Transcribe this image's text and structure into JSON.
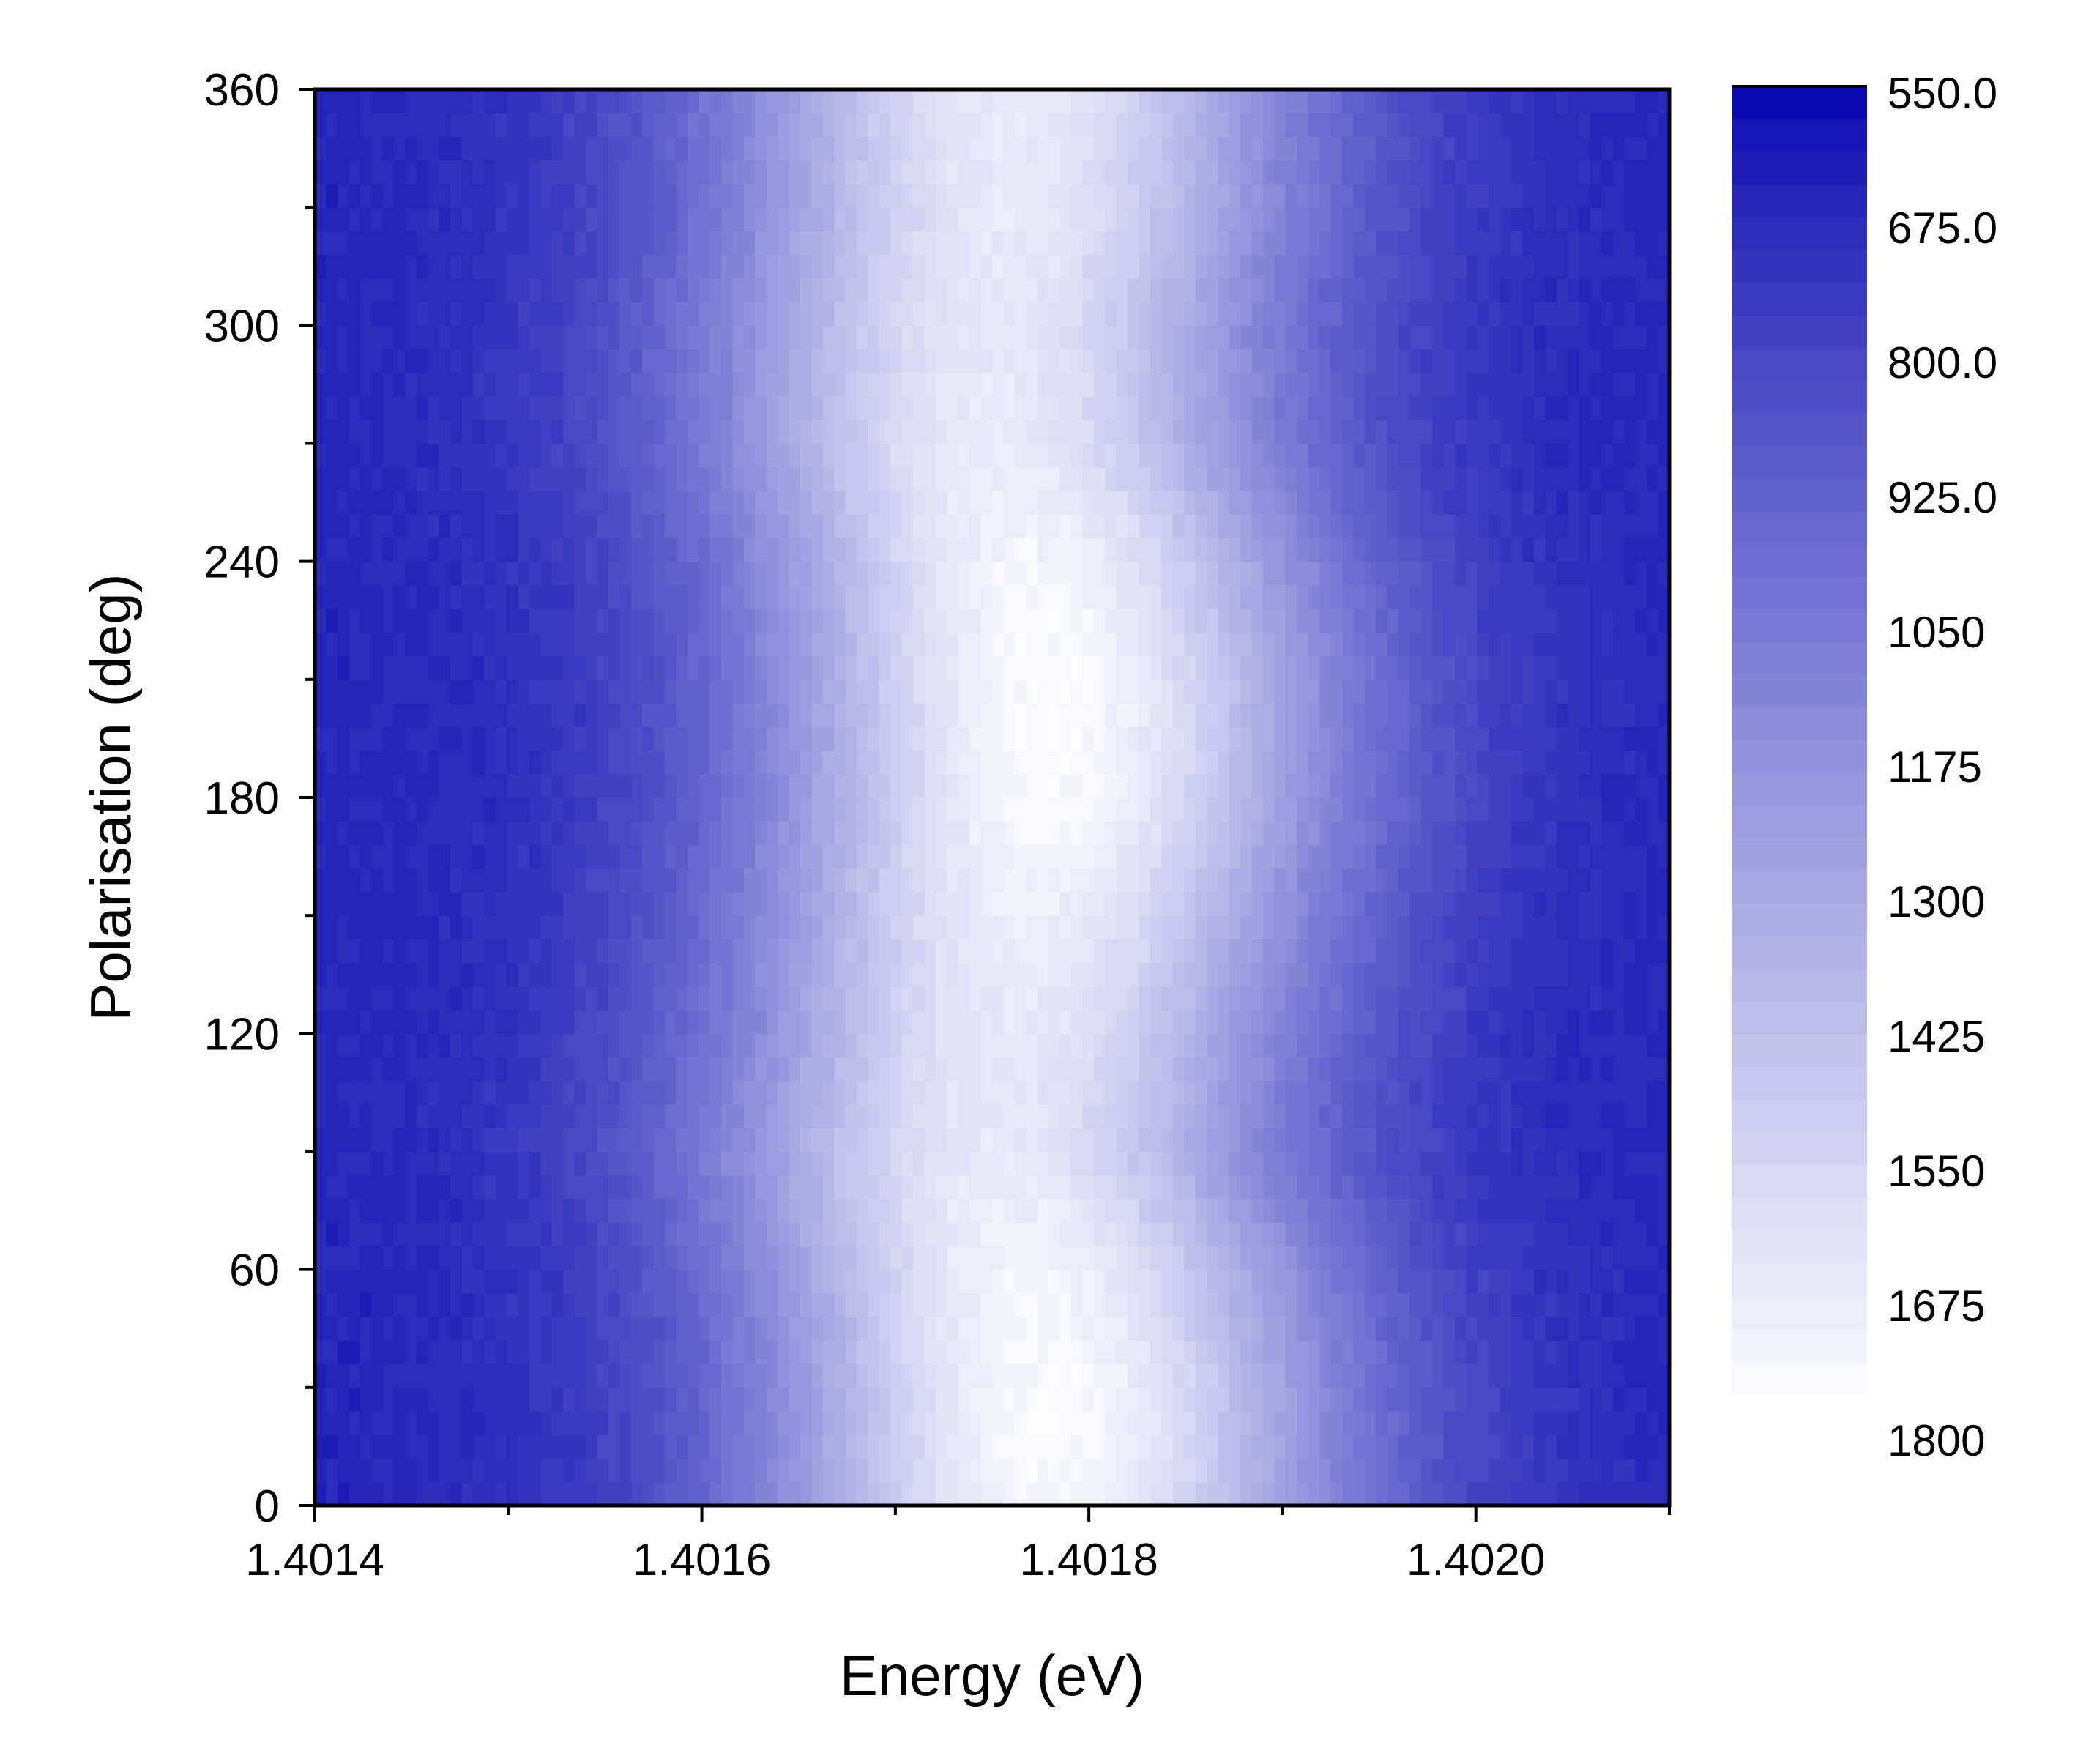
{
  "chart_data": {
    "type": "heatmap",
    "xlabel": "Energy (eV)",
    "ylabel": "Polarisation (deg)",
    "xlim": [
      1.4014,
      1.4021
    ],
    "ylim": [
      0,
      360
    ],
    "x_ticks": [
      1.4014,
      1.4016,
      1.4018,
      1.402
    ],
    "x_tick_labels": [
      "1.4014",
      "1.4016",
      "1.4018",
      "1.4020"
    ],
    "x_minor_ticks": [
      1.4015,
      1.4017,
      1.4019,
      1.4021
    ],
    "y_ticks": [
      0,
      60,
      120,
      180,
      240,
      300,
      360
    ],
    "y_tick_labels": [
      "0",
      "60",
      "120",
      "180",
      "240",
      "300",
      "360"
    ],
    "y_minor_ticks": [
      30,
      90,
      150,
      210,
      270,
      330
    ],
    "colorbar": {
      "range": [
        550,
        1800
      ],
      "levels": 40,
      "tick_values": [
        550,
        675,
        800,
        925,
        1050,
        1175,
        1300,
        1425,
        1550,
        1675,
        1800
      ],
      "tick_labels": [
        "550.0",
        "675.0",
        "800.0",
        "925.0",
        "1050",
        "1175",
        "1300",
        "1425",
        "1550",
        "1675",
        "1800"
      ],
      "low_color": "#0a0ab0",
      "high_color": "#fdfdff"
    },
    "peak": {
      "center_eV": [
        {
          "polarisation": 0,
          "energy": 1.40178
        },
        {
          "polarisation": 30,
          "energy": 1.40178
        },
        {
          "polarisation": 60,
          "energy": 1.40177
        },
        {
          "polarisation": 90,
          "energy": 1.40175
        },
        {
          "polarisation": 120,
          "energy": 1.40176
        },
        {
          "polarisation": 150,
          "energy": 1.40177
        },
        {
          "polarisation": 180,
          "energy": 1.40178
        },
        {
          "polarisation": 210,
          "energy": 1.40178
        },
        {
          "polarisation": 240,
          "energy": 1.40177
        },
        {
          "polarisation": 270,
          "energy": 1.40175
        },
        {
          "polarisation": 300,
          "energy": 1.40175
        },
        {
          "polarisation": 330,
          "energy": 1.40176
        },
        {
          "polarisation": 360,
          "energy": 1.40176
        }
      ],
      "width_eV": 0.00011,
      "max_intensity": [
        {
          "polarisation": 0,
          "value": 1780
        },
        {
          "polarisation": 30,
          "value": 1790
        },
        {
          "polarisation": 60,
          "value": 1760
        },
        {
          "polarisation": 90,
          "value": 1690
        },
        {
          "polarisation": 120,
          "value": 1680
        },
        {
          "polarisation": 150,
          "value": 1730
        },
        {
          "polarisation": 180,
          "value": 1790
        },
        {
          "polarisation": 210,
          "value": 1800
        },
        {
          "polarisation": 240,
          "value": 1760
        },
        {
          "polarisation": 270,
          "value": 1700
        },
        {
          "polarisation": 300,
          "value": 1680
        },
        {
          "polarisation": 330,
          "value": 1690
        },
        {
          "polarisation": 360,
          "value": 1700
        }
      ],
      "background": 660
    }
  }
}
